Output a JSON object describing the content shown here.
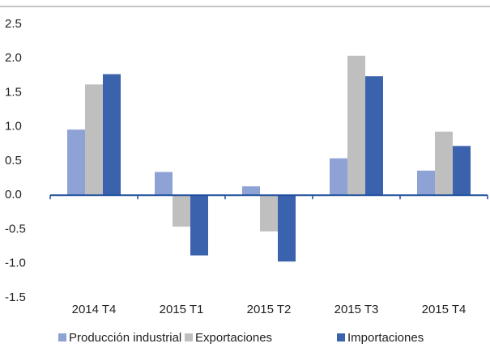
{
  "chart_data": {
    "type": "bar",
    "categories": [
      "2014 T4",
      "2015 T1",
      "2015 T2",
      "2015 T3",
      "2015 T4"
    ],
    "series": [
      {
        "name": "Producción industrial",
        "color": "#8fa2d5",
        "values": [
          0.96,
          0.34,
          0.13,
          0.54,
          0.36
        ]
      },
      {
        "name": "Exportaciones",
        "color": "#bfbfbf",
        "values": [
          1.62,
          -0.46,
          -0.53,
          2.04,
          0.93
        ]
      },
      {
        "name": "Importaciones",
        "color": "#3a62ad",
        "values": [
          1.77,
          -0.88,
          -0.97,
          1.74,
          0.72
        ]
      }
    ],
    "ylim": [
      -1.5,
      2.5
    ],
    "yticks": [
      -1.5,
      {
        "value": -1,
        "label": "-1.0"
      },
      -0.5,
      {
        "value": 0,
        "label": "0.0"
      },
      0.5,
      {
        "value": 1,
        "label": "1.0"
      },
      1.5,
      {
        "value": 2,
        "label": "2.0"
      },
      2.5
    ],
    "grid": false
  }
}
